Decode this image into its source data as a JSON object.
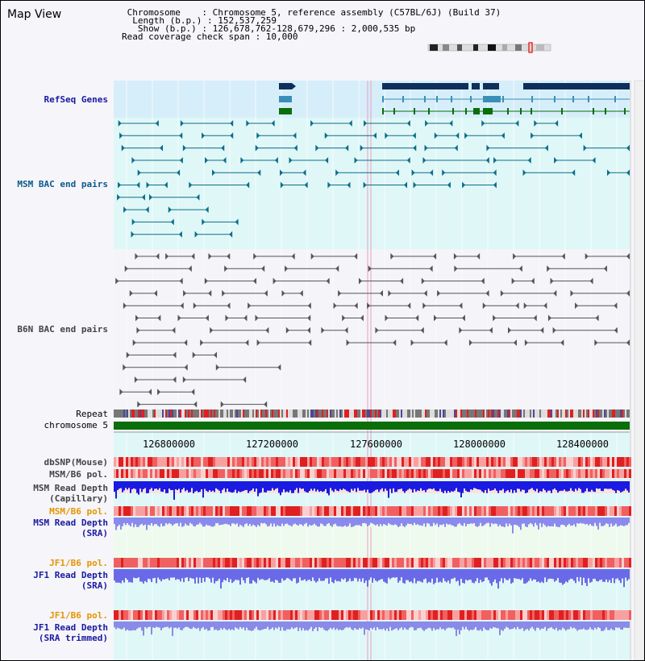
{
  "header": {
    "title": "Map View",
    "info_lines": [
      " Chromosome    : Chromosome 5, reference assembly (C57BL/6J) (Build 37)",
      "  Length (b.p.) : 152,537,259",
      "   Show (b.p.) : 126,678,762-128,679,296 : 2,000,535 bp",
      "Read coverage check span : 10,000"
    ]
  },
  "tracks": {
    "refseq": "RefSeq Genes",
    "msm_bac": "MSM BAC end pairs",
    "b6n_bac": "B6N BAC end pairs",
    "repeat": "Repeat",
    "chromosome": "chromosome 5",
    "dbsnp": "dbSNP(Mouse)",
    "msm_b6_pol_1": "MSM/B6 pol.",
    "msm_read_cap_1": "MSM Read Depth",
    "msm_read_cap_2": "(Capillary)",
    "msm_b6_pol_2": "MSM/B6 pol.",
    "msm_read_sra_1": "MSM Read Depth",
    "msm_read_sra_2": "(SRA)",
    "jf1_b6_pol_1": "JF1/B6 pol.",
    "jf1_read_sra_1": "JF1 Read Depth",
    "jf1_read_sra_2": "(SRA)",
    "jf1_b6_pol_2": "JF1/B6 pol.",
    "jf1_read_trim_1": "JF1 Read Depth",
    "jf1_read_trim_2": "(SRA trimmed)"
  },
  "axis": {
    "ticks": [
      "126800000",
      "127200000",
      "127600000",
      "128000000",
      "128400000"
    ]
  },
  "colors": {
    "refseq_bg": "#d6eef9",
    "gene_dark": "#0d2f5a",
    "gene_mid": "#3a8fb8",
    "gene_green": "#0a6e0a",
    "msm_line": "#0a6e8a",
    "b6n_line": "#555555",
    "chromosome": "#0a6e0a",
    "pol_red": "#e03030",
    "depth_blue": "#1a1ae0",
    "depth_light": "#6a6ae8",
    "highlight": "#e8a0c0"
  }
}
